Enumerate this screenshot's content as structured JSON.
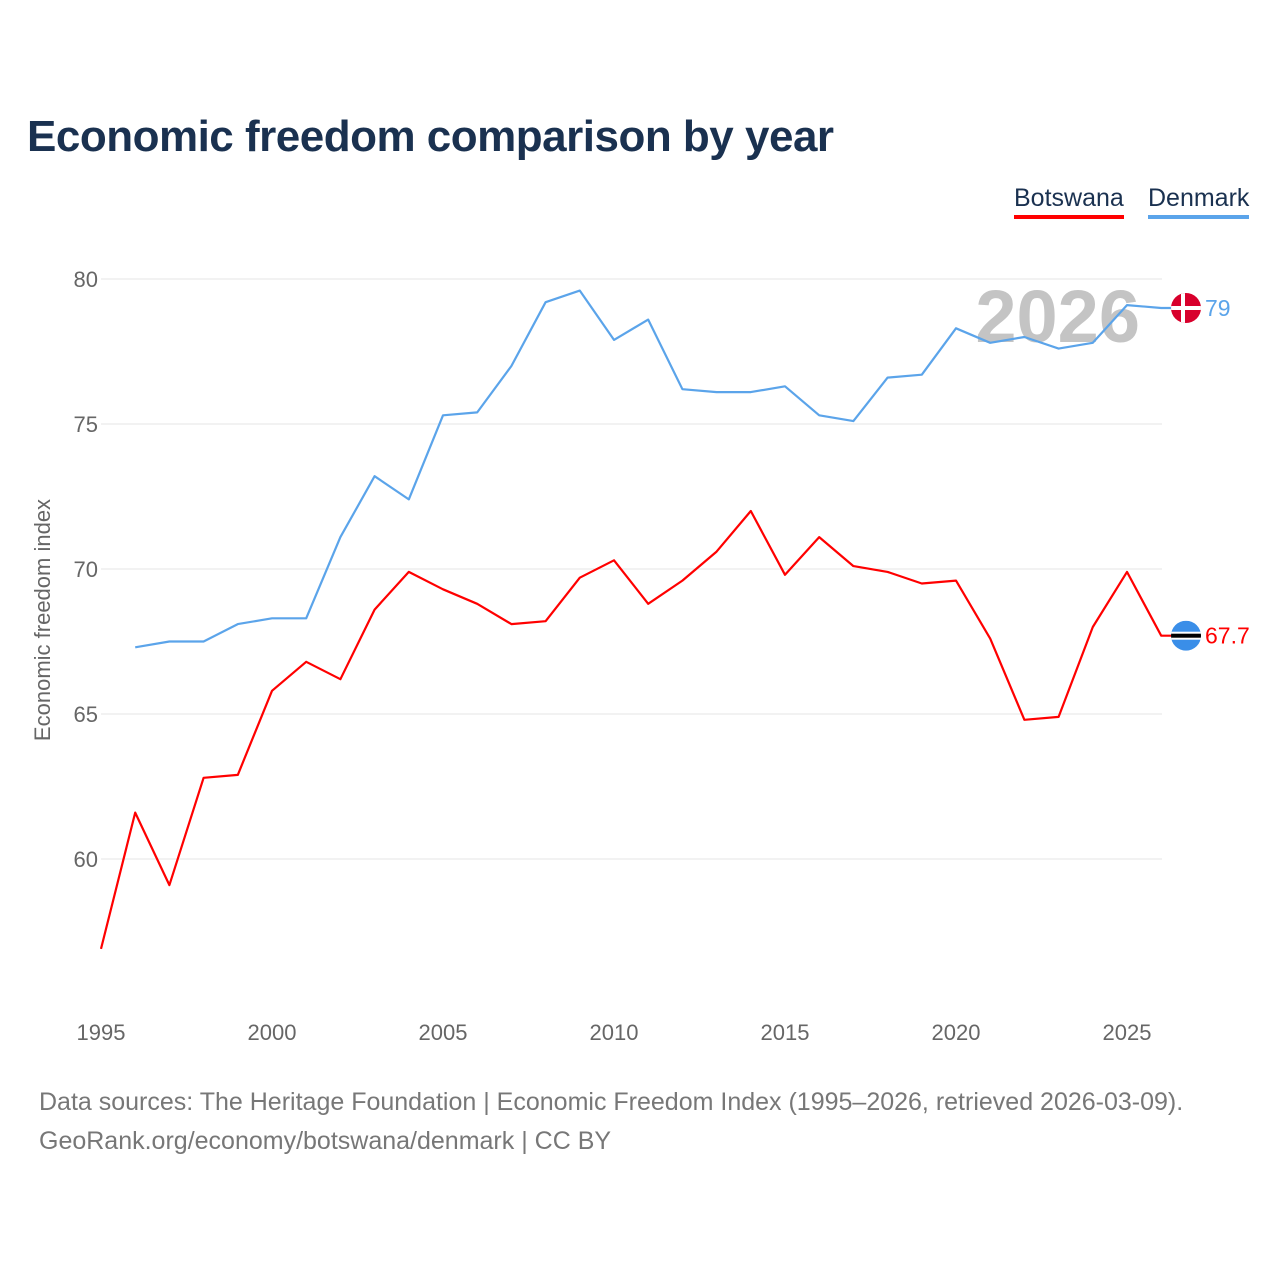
{
  "chart_data": {
    "type": "line",
    "title": "Economic freedom comparison by year",
    "xlabel": "",
    "ylabel": "Economic freedom index",
    "ylim": [
      55.5,
      80.5
    ],
    "xlim": [
      1995,
      2026
    ],
    "yticks": [
      "60",
      "65",
      "70",
      "75",
      "80"
    ],
    "xticks": [
      "1995",
      "2000",
      "2005",
      "2010",
      "2015",
      "2020",
      "2025"
    ],
    "grid": true,
    "legend_position": "top-right",
    "current_year_label": "2026",
    "series": [
      {
        "name": "Botswana",
        "color": "#ff0000",
        "end_label": "67.7",
        "flag": "botswana-flag",
        "x": [
          1995,
          1996,
          1997,
          1998,
          1999,
          2000,
          2001,
          2002,
          2003,
          2004,
          2005,
          2006,
          2007,
          2008,
          2009,
          2010,
          2011,
          2012,
          2013,
          2014,
          2015,
          2016,
          2017,
          2018,
          2019,
          2020,
          2021,
          2022,
          2023,
          2024,
          2025,
          2026
        ],
        "values": [
          56.9,
          61.6,
          59.1,
          62.8,
          62.9,
          65.8,
          66.8,
          66.2,
          68.6,
          69.9,
          69.3,
          68.8,
          68.1,
          68.2,
          69.7,
          70.3,
          68.8,
          69.6,
          70.6,
          72.0,
          69.8,
          71.1,
          70.1,
          69.9,
          69.5,
          69.6,
          67.6,
          64.8,
          64.9,
          68.0,
          69.9,
          67.7
        ]
      },
      {
        "name": "Denmark",
        "color": "#5ba4ea",
        "end_label": "79",
        "flag": "denmark-flag",
        "x": [
          1996,
          1997,
          1998,
          1999,
          2000,
          2001,
          2002,
          2003,
          2004,
          2005,
          2006,
          2007,
          2008,
          2009,
          2010,
          2011,
          2012,
          2013,
          2014,
          2015,
          2016,
          2017,
          2018,
          2019,
          2020,
          2021,
          2022,
          2023,
          2024,
          2025,
          2026
        ],
        "values": [
          67.3,
          67.5,
          67.5,
          68.1,
          68.3,
          68.3,
          71.1,
          73.2,
          72.4,
          75.3,
          75.4,
          77.0,
          79.2,
          79.6,
          77.9,
          78.6,
          76.2,
          76.1,
          76.1,
          76.3,
          75.3,
          75.1,
          76.6,
          76.7,
          78.3,
          77.8,
          78.0,
          77.6,
          77.8,
          79.1,
          79.0
        ]
      }
    ]
  },
  "footer": {
    "sources": "Data sources: The Heritage Foundation | Economic Freedom Index (1995–2026, retrieved 2026-03-09).",
    "link": "GeoRank.org/economy/botswana/denmark | CC BY"
  }
}
